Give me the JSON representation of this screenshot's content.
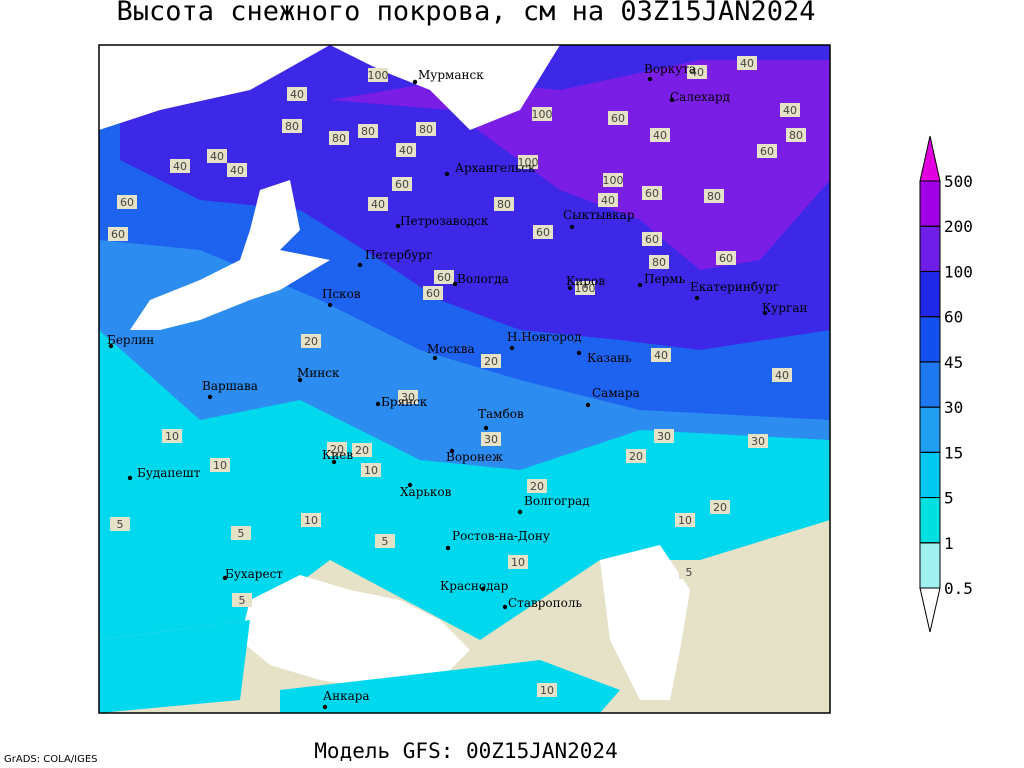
{
  "title": "Высота снежного покрова, см на 03Z15JAN2024",
  "footer": "Модель GFS: 00Z15JAN2024",
  "credit": "GrADS: COLA/IGES",
  "legend": {
    "levels": [
      0.5,
      1,
      5,
      15,
      30,
      45,
      60,
      100,
      200,
      500
    ],
    "colors": [
      "#ffffff",
      "#a0f0f0",
      "#00e0e0",
      "#00c8f0",
      "#209ef0",
      "#1e78f0",
      "#1450f0",
      "#1e28e6",
      "#6e1ee6",
      "#a000e6",
      "#e000e0"
    ]
  },
  "cities": [
    "Мурманск",
    "Воркута",
    "Салехард",
    "Архангельск",
    "Петрозаводск",
    "Сыктывкар",
    "Петербург",
    "Вологда",
    "Киров",
    "Пермь",
    "Екатеринбург",
    "Курган",
    "Псков",
    "Берлин",
    "Москва",
    "Н.Новгород",
    "Казань",
    "Минск",
    "Варшава",
    "Самара",
    "Брянск",
    "Тамбов",
    "Киев",
    "Воронеж",
    "Будапешт",
    "Харьков",
    "Волгоград",
    "Ростов-на-Дону",
    "Бухарест",
    "Краснодар",
    "Ставрополь",
    "Анкара"
  ],
  "contour_labels": [
    60,
    100,
    40,
    80,
    40,
    40,
    40,
    60,
    80,
    40,
    80,
    60,
    80,
    100,
    100,
    60,
    40,
    80,
    60,
    40,
    60,
    100,
    60,
    80,
    60,
    100,
    40,
    40,
    40,
    80,
    40,
    60,
    60,
    80,
    60,
    20,
    10,
    10,
    20,
    30,
    30,
    20,
    20,
    10,
    5,
    5,
    10,
    5,
    5,
    10,
    5,
    20,
    10,
    30,
    40,
    40,
    20,
    30,
    20,
    10
  ]
}
